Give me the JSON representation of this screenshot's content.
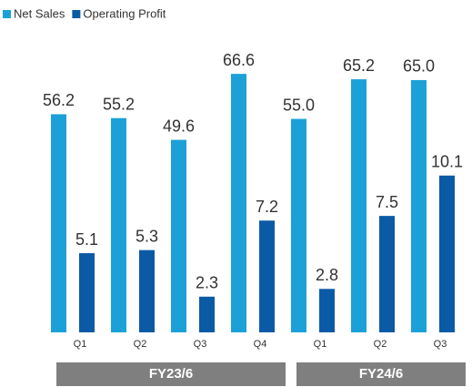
{
  "chart_data": {
    "type": "bar",
    "groups": [
      {
        "label": "FY23/6",
        "categories": [
          "Q1",
          "Q2",
          "Q3",
          "Q4"
        ]
      },
      {
        "label": "FY24/6",
        "categories": [
          "Q1",
          "Q2",
          "Q3"
        ]
      }
    ],
    "series": [
      {
        "name": "Net Sales",
        "color": "#1ba1d8",
        "values": [
          56.2,
          55.2,
          49.6,
          66.6,
          55.0,
          65.2,
          65.0
        ],
        "value_labels": [
          "56.2",
          "55.2",
          "49.6",
          "66.6",
          "55.0",
          "65.2",
          "65.0"
        ]
      },
      {
        "name": "Operating Profit",
        "color": "#0b5aa6",
        "axis": "y2",
        "values": [
          5.1,
          5.3,
          2.3,
          7.2,
          2.8,
          7.5,
          10.1
        ],
        "value_labels": [
          "5.1",
          "5.3",
          "2.3",
          "7.2",
          "2.8",
          "7.5",
          "10.1"
        ]
      }
    ],
    "ylim": [
      0,
      80
    ],
    "y2lim": [
      0,
      20
    ],
    "legend": "top-left"
  }
}
